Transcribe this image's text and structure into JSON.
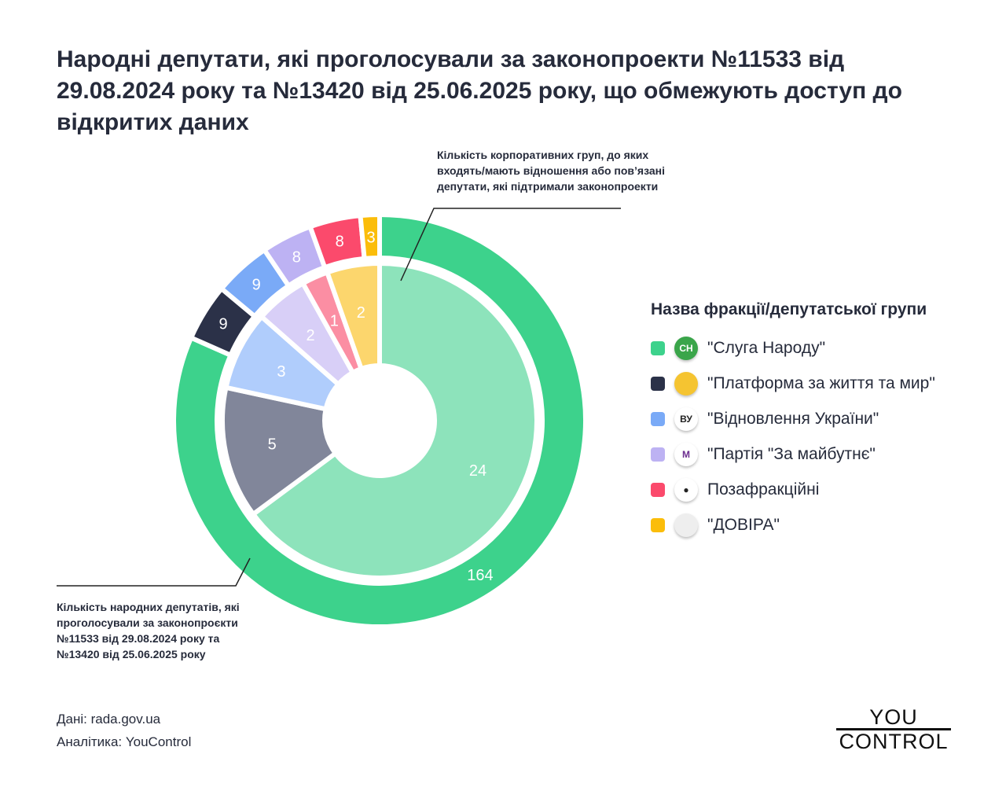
{
  "title": "Народні депутати, які проголосували за законопроекти №11533 від 29.08.2024 року та №13420 від 25.06.2025 року, що обмежують доступ до відкритих даних",
  "chart_data": {
    "type": "pie",
    "subtype": "nested-donut",
    "categories": [
      "\"Слуга Народу\"",
      "\"Платформа за життя та мир\"",
      "\"Відновлення України\"",
      "\"Партія \"За майбутнє\"",
      "Позафракційні",
      "\"ДОВІРА\""
    ],
    "series": [
      {
        "name": "Кількість народних депутатів, які проголосували за законопроєкти №11533 від 29.08.2024 року та №13420 від 25.06.2025 року",
        "ring": "outer",
        "values": [
          164,
          9,
          9,
          8,
          8,
          3
        ],
        "colors": [
          "#3dd28c",
          "#2b3148",
          "#7aaaf7",
          "#bdb2f3",
          "#fb4a6c",
          "#fbbd0a"
        ]
      },
      {
        "name": "Кількість корпоративних груп, до яких входять/мають відношення або пов’язані депутати, які підтримали законопроекти",
        "ring": "inner",
        "values": [
          24,
          5,
          3,
          2,
          1,
          2
        ],
        "colors": [
          "#8de3bb",
          "#81869a",
          "#b0cdfc",
          "#d8cff7",
          "#fb8ea3",
          "#fcd66d"
        ]
      }
    ],
    "legend_title": "Назва фракції/депутатської групи",
    "legend_position": "right"
  },
  "notes": {
    "top": "Кількість корпоративних груп, до яких входять/мають відношення або пов’язані депутати, які підтримали законопроекти",
    "bottom": "Кількість народних депутатів, які проголосували за законопроєкти №11533 від 29.08.2024 року та №13420 від 25.06.2025 року"
  },
  "legend": {
    "icons": [
      {
        "name": "sluha-narodu-logo",
        "text": "СН",
        "bg": "#3aa54a",
        "fg": "#ffffff"
      },
      {
        "name": "platforma-logo",
        "text": "",
        "bg": "#f5c431",
        "fg": "#1e4aa8"
      },
      {
        "name": "vidnovlennia-logo",
        "text": "ВУ",
        "bg": "#ffffff",
        "fg": "#222222"
      },
      {
        "name": "za-maibutnie-logo",
        "text": "М",
        "bg": "#ffffff",
        "fg": "#6b2c8f"
      },
      {
        "name": "person-icon",
        "text": "●",
        "bg": "#ffffff",
        "fg": "#222222"
      },
      {
        "name": "dovira-logo",
        "text": "",
        "bg": "#eeeeee",
        "fg": "#2e8b57"
      }
    ]
  },
  "source": {
    "data": "Дані: rada.gov.ua",
    "analytics": "Аналітика: YouControl"
  },
  "logo": {
    "top": "YOU",
    "bottom": "CONTROL"
  }
}
